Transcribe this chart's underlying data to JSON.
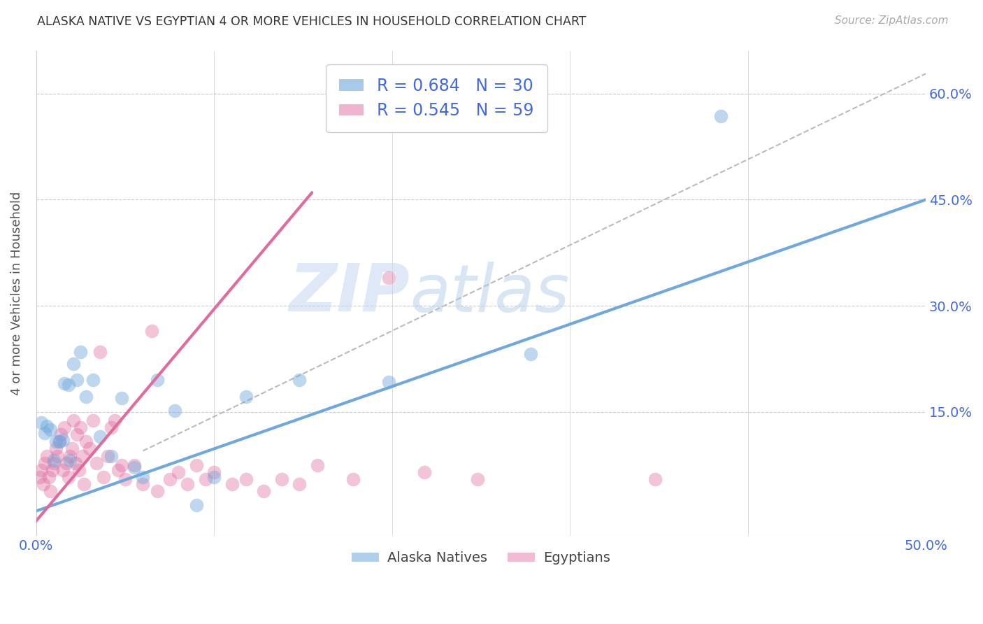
{
  "title": "ALASKA NATIVE VS EGYPTIAN 4 OR MORE VEHICLES IN HOUSEHOLD CORRELATION CHART",
  "source": "Source: ZipAtlas.com",
  "ylabel": "4 or more Vehicles in Household",
  "xlim": [
    0.0,
    0.5
  ],
  "ylim": [
    -0.025,
    0.66
  ],
  "xticks": [
    0.0,
    0.1,
    0.2,
    0.3,
    0.4,
    0.5
  ],
  "yticks": [
    0.0,
    0.15,
    0.3,
    0.45,
    0.6
  ],
  "blue_R": "0.684",
  "blue_N": "30",
  "pink_R": "0.545",
  "pink_N": "59",
  "blue_color": "#6fa8dc",
  "pink_color": "#e06c9f",
  "label_color": "#4169e1",
  "watermark_text": "ZIPatlas",
  "blue_scatter_x": [
    0.003,
    0.005,
    0.006,
    0.008,
    0.01,
    0.011,
    0.013,
    0.015,
    0.016,
    0.018,
    0.019,
    0.021,
    0.023,
    0.025,
    0.028,
    0.032,
    0.036,
    0.042,
    0.048,
    0.055,
    0.06,
    0.068,
    0.078,
    0.09,
    0.1,
    0.118,
    0.148,
    0.198,
    0.278,
    0.385
  ],
  "blue_scatter_y": [
    0.135,
    0.12,
    0.13,
    0.125,
    0.082,
    0.108,
    0.108,
    0.11,
    0.19,
    0.188,
    0.082,
    0.218,
    0.195,
    0.235,
    0.172,
    0.195,
    0.115,
    0.088,
    0.17,
    0.072,
    0.058,
    0.195,
    0.152,
    0.018,
    0.058,
    0.172,
    0.195,
    0.192,
    0.232,
    0.568
  ],
  "pink_scatter_x": [
    0.002,
    0.003,
    0.004,
    0.005,
    0.006,
    0.007,
    0.008,
    0.009,
    0.01,
    0.011,
    0.012,
    0.013,
    0.014,
    0.015,
    0.016,
    0.017,
    0.018,
    0.019,
    0.02,
    0.021,
    0.022,
    0.023,
    0.024,
    0.025,
    0.026,
    0.027,
    0.028,
    0.03,
    0.032,
    0.034,
    0.036,
    0.038,
    0.04,
    0.042,
    0.044,
    0.046,
    0.048,
    0.05,
    0.055,
    0.06,
    0.065,
    0.068,
    0.075,
    0.08,
    0.085,
    0.09,
    0.095,
    0.1,
    0.11,
    0.118,
    0.128,
    0.138,
    0.148,
    0.158,
    0.178,
    0.198,
    0.218,
    0.248,
    0.348
  ],
  "pink_scatter_y": [
    0.058,
    0.068,
    0.048,
    0.078,
    0.088,
    0.058,
    0.038,
    0.068,
    0.078,
    0.098,
    0.088,
    0.108,
    0.118,
    0.068,
    0.128,
    0.078,
    0.058,
    0.088,
    0.098,
    0.138,
    0.078,
    0.118,
    0.068,
    0.128,
    0.088,
    0.048,
    0.108,
    0.098,
    0.138,
    0.078,
    0.235,
    0.058,
    0.088,
    0.128,
    0.138,
    0.068,
    0.075,
    0.055,
    0.075,
    0.048,
    0.265,
    0.038,
    0.055,
    0.065,
    0.048,
    0.075,
    0.055,
    0.065,
    0.048,
    0.055,
    0.038,
    0.055,
    0.048,
    0.075,
    0.055,
    0.34,
    0.065,
    0.055,
    0.055
  ],
  "blue_line_x": [
    0.0,
    0.5
  ],
  "blue_line_y": [
    0.01,
    0.45
  ],
  "pink_line_x": [
    -0.002,
    0.155
  ],
  "pink_line_y": [
    -0.01,
    0.46
  ],
  "diag_line_x": [
    0.06,
    0.5
  ],
  "diag_line_y": [
    0.095,
    0.628
  ],
  "grid_color": "#cccccc",
  "background_color": "#ffffff"
}
